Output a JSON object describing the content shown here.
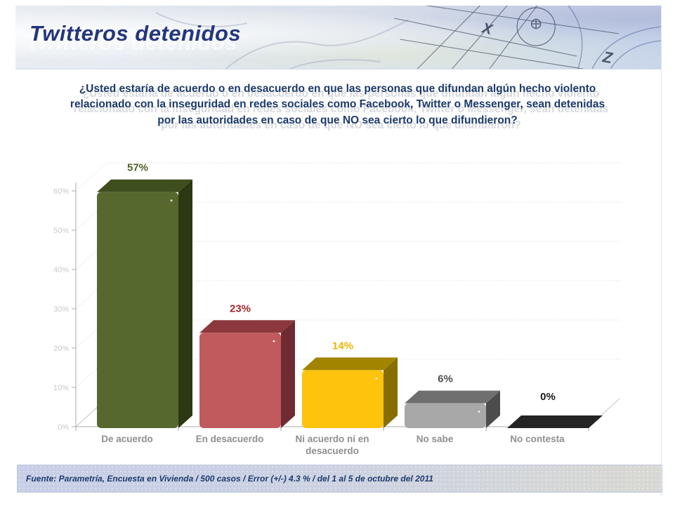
{
  "slide": {
    "title": "Twitteros detenidos",
    "question": "¿Usted estaría de acuerdo o en desacuerdo en que las personas que difundan algún hecho violento relacionado con la inseguridad en redes sociales como Facebook, Twitter o Messenger, sean detenidas por las autoridades en caso de que NO sea cierto lo que difundieron?",
    "footer": "Fuente: Parametría, Encuesta en Vivienda / 500 casos / Error (+/-) 4.3 % / del 1 al 5 de octubre del 2011"
  },
  "header_art": {
    "letter_x": "X",
    "letter_z": "Z"
  },
  "chart_data": {
    "type": "bar",
    "projection": "3d",
    "title": "¿Usted estaría de acuerdo o en desacuerdo en que las personas que difundan algún hecho violento relacionado con la inseguridad en redes sociales como Facebook, Twitter o Messenger, sean detenidas por las autoridades en caso de que NO sea cierto lo que difundieron?",
    "categories": [
      "De acuerdo",
      "En desacuerdo",
      "Ni acuerdo ni en desacuerdo",
      "No sabe",
      "No contesta"
    ],
    "values": [
      57,
      23,
      14,
      6,
      0
    ],
    "data_labels": [
      "57%",
      "23%",
      "14%",
      "6%",
      "0%"
    ],
    "yticks": [
      "0%",
      "10%",
      "20%",
      "30%",
      "40%",
      "50%",
      "60%"
    ],
    "ylim": [
      0,
      60
    ],
    "xlabel": "",
    "ylabel": "",
    "grid": true,
    "legend": false,
    "axis_color": "#ababab",
    "grid_color": "#d9d9d9",
    "tick_label_color": "#c9c9c9",
    "category_label_color": "#8f8f8f",
    "bars": [
      {
        "category": "De acuerdo",
        "label_lines": [
          "De acuerdo"
        ],
        "value": 57,
        "label": "57%",
        "colors": {
          "front": "#57682e",
          "side": "#2b3811",
          "top": "#3e4e1d",
          "label": "#4f6228"
        }
      },
      {
        "category": "En desacuerdo",
        "label_lines": [
          "En desacuerdo"
        ],
        "value": 23,
        "label": "23%",
        "colors": {
          "front": "#c05a5d",
          "side": "#6f2b30",
          "top": "#8d383d",
          "label": "#a5282e"
        }
      },
      {
        "category": "Ni acuerdo ni en desacuerdo",
        "label_lines": [
          "Ni acuerdo ni en",
          "desacuerdo"
        ],
        "value": 14,
        "label": "14%",
        "colors": {
          "front": "#fdc30d",
          "side": "#876e00",
          "top": "#a28400",
          "label": "#edb400"
        }
      },
      {
        "category": "No sabe",
        "label_lines": [
          "No sabe"
        ],
        "value": 6,
        "label": "6%",
        "colors": {
          "front": "#a8a8a8",
          "side": "#4c4c4c",
          "top": "#6f6f6f",
          "label": "#4f4f4f"
        }
      },
      {
        "category": "No contesta",
        "label_lines": [
          "No contesta"
        ],
        "value": 0,
        "label": "0%",
        "colors": {
          "front": "#242424",
          "side": "#111111",
          "top": "#242424",
          "label": "#1a1a1a"
        }
      }
    ]
  }
}
